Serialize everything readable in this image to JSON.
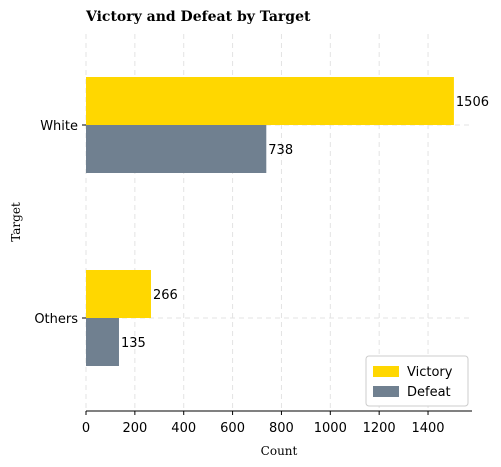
{
  "chart_data": {
    "type": "bar",
    "orientation": "horizontal",
    "title": "Victory and Defeat by Target",
    "xlabel": "Count",
    "ylabel": "Target",
    "categories": [
      "White",
      "Others"
    ],
    "series": [
      {
        "name": "Victory",
        "values": [
          1506,
          266
        ],
        "color": "#FFD700"
      },
      {
        "name": "Defeat",
        "values": [
          738,
          135
        ],
        "color": "#708090"
      }
    ],
    "xlim": [
      0,
      1580
    ],
    "xticks": [
      0,
      200,
      400,
      600,
      800,
      1000,
      1200,
      1400
    ],
    "grid": true,
    "grid_style": "dashed",
    "legend_position": "bottom-right"
  }
}
